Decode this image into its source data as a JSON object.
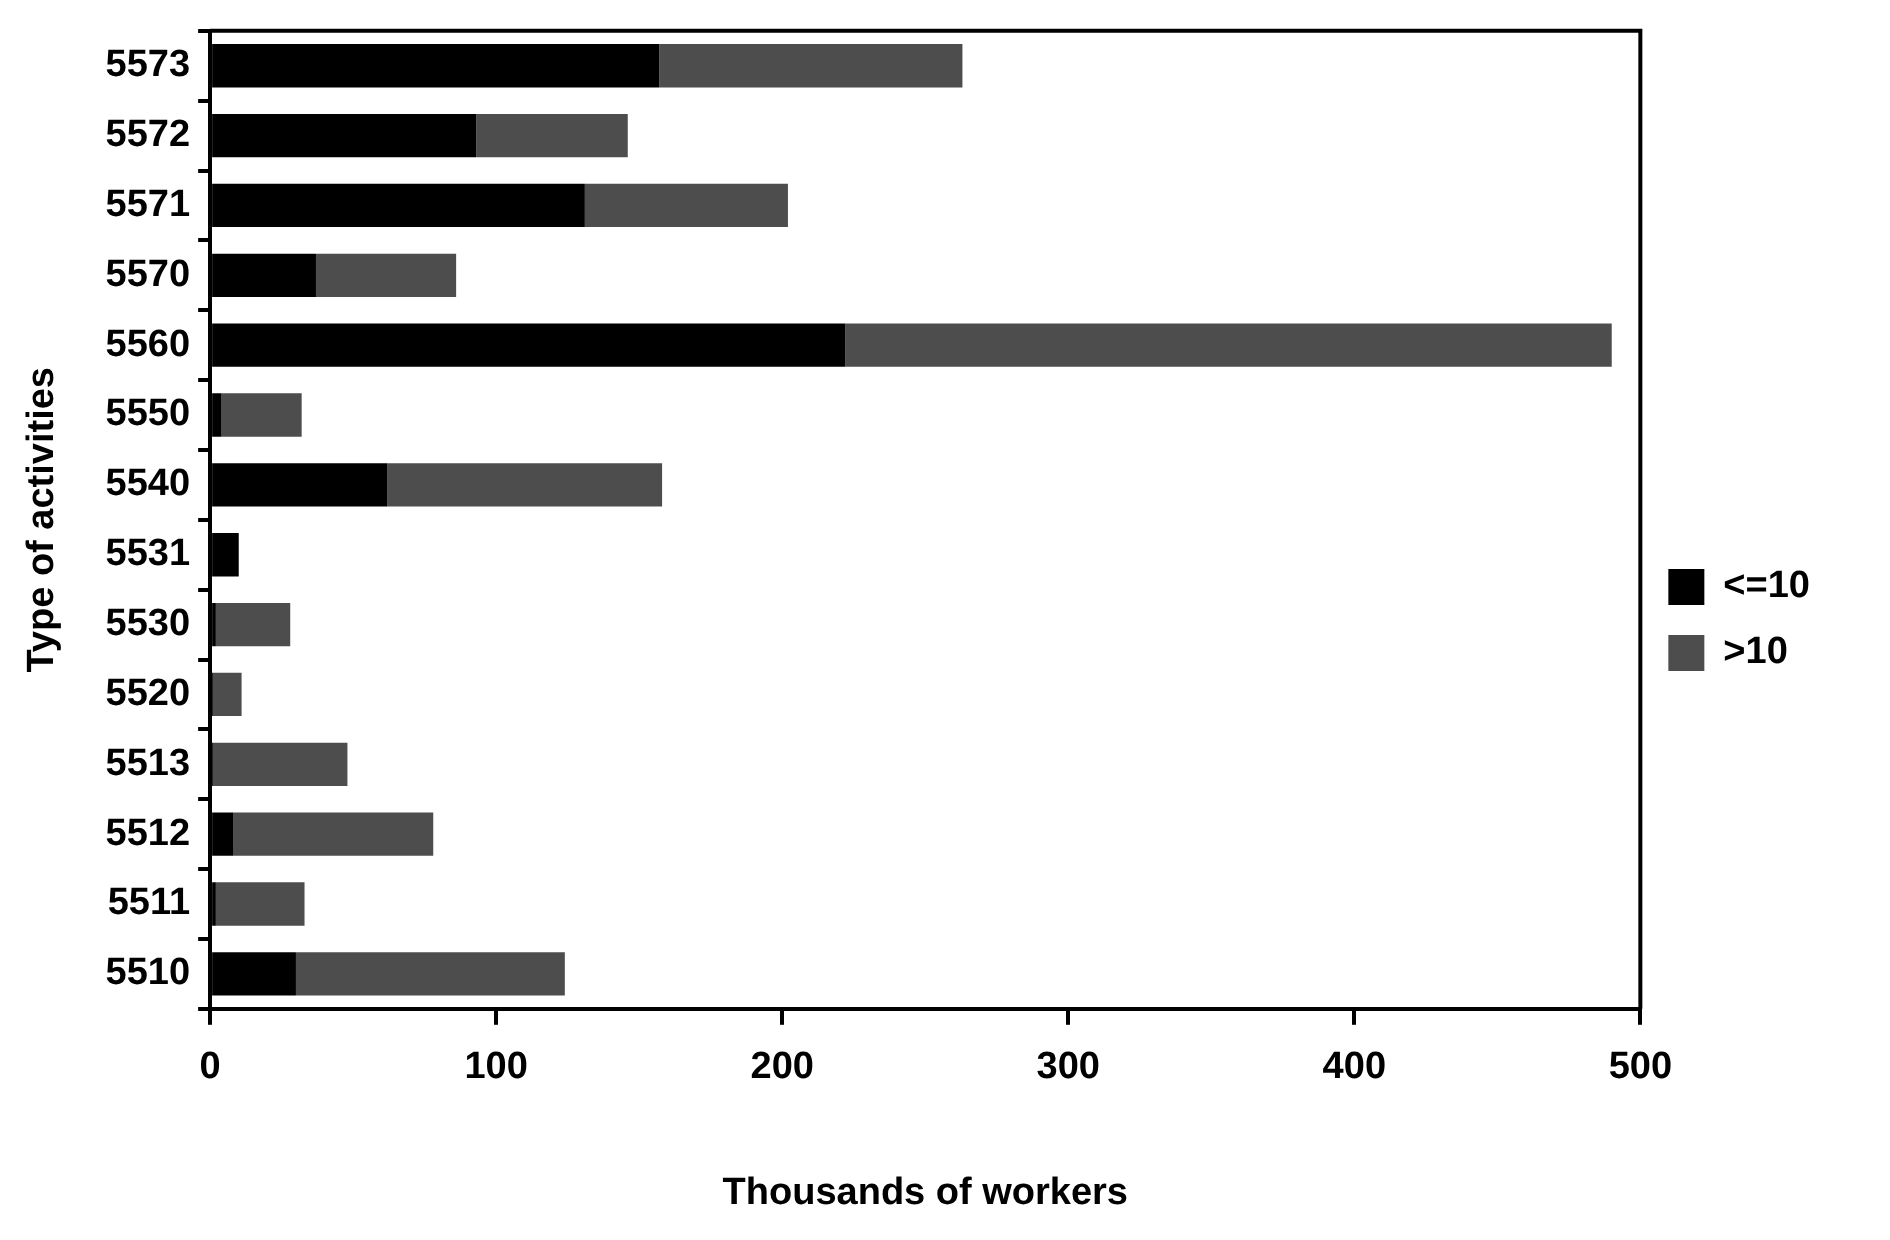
{
  "chart_data": {
    "type": "bar",
    "orientation": "horizontal",
    "stacked": true,
    "xlabel": "Thousands of workers",
    "ylabel": "Type of activities",
    "categories": [
      "5573",
      "5572",
      "5571",
      "5570",
      "5560",
      "5550",
      "5540",
      "5531",
      "5530",
      "5520",
      "5513",
      "5512",
      "5511",
      "5510"
    ],
    "series": [
      {
        "name": "<=10",
        "color": "#000000",
        "values": [
          157,
          93,
          131,
          37,
          222,
          4,
          62,
          10,
          2,
          1,
          1,
          8,
          2,
          30
        ]
      },
      {
        "name": ">10",
        "color": "#4d4d4d",
        "values": [
          106,
          53,
          71,
          49,
          268,
          28,
          96,
          0,
          26,
          10,
          47,
          70,
          31,
          94
        ]
      }
    ],
    "xlim": [
      0,
      500
    ],
    "xticks": [
      0,
      100,
      200,
      300,
      400,
      500
    ],
    "grid": false,
    "legend": "right"
  }
}
